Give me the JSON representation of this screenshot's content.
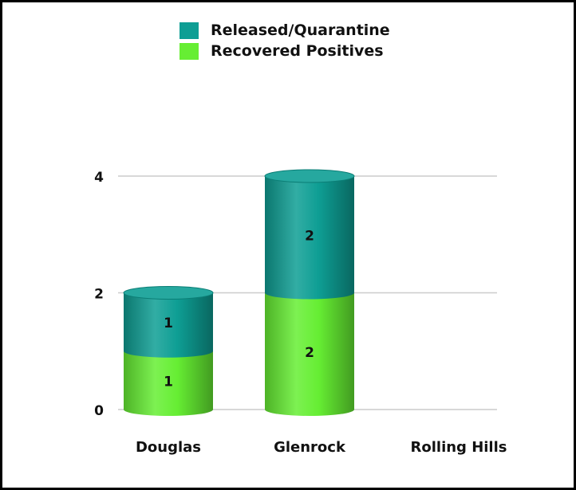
{
  "chart_data": {
    "type": "bar",
    "stacked": true,
    "style": "3d-cylinder",
    "categories": [
      "Douglas",
      "Glenrock",
      "Rolling Hills"
    ],
    "series": [
      {
        "name": "Recovered Positives",
        "values": [
          1,
          2,
          0
        ],
        "color": "#66ee33"
      },
      {
        "name": "Released/Quarantine",
        "values": [
          1,
          2,
          0
        ],
        "color": "#0e9e94"
      }
    ],
    "data_labels": [
      {
        "series": "Recovered Positives",
        "labels": [
          "1",
          "2",
          ""
        ]
      },
      {
        "series": "Released/Quarantine",
        "labels": [
          "1",
          "2",
          ""
        ]
      }
    ],
    "y_ticks": [
      "0",
      "2",
      "4"
    ],
    "ylim": [
      0,
      4
    ],
    "grid": true,
    "legend_position": "top-center",
    "legend_order": [
      "Released/Quarantine",
      "Recovered Positives"
    ]
  }
}
